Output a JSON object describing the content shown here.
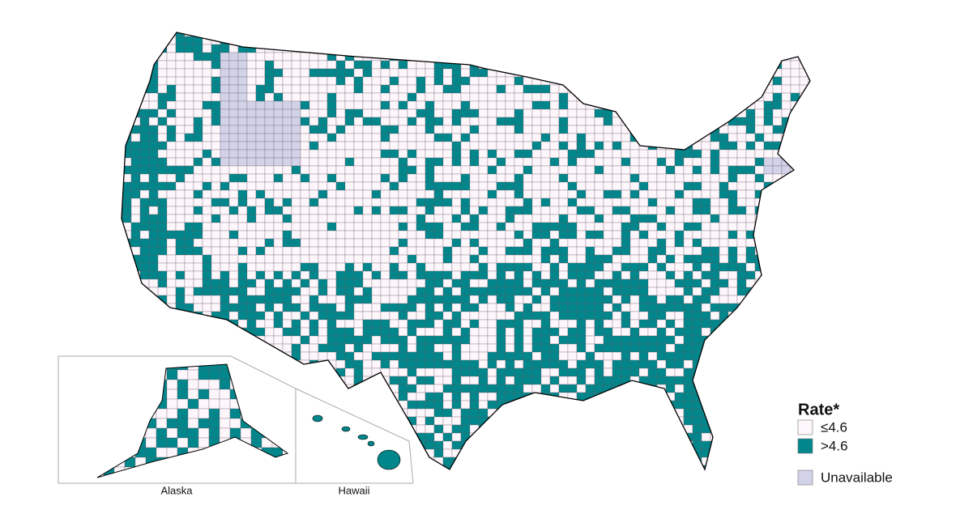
{
  "legend": {
    "title": "Rate*",
    "items": [
      {
        "label": "≤4.6",
        "color": "#fdf6fb"
      },
      {
        "label": ">4.6",
        "color": "#00868b"
      },
      {
        "label": "Unavailable",
        "color": "#d2d2e8"
      }
    ]
  },
  "insets": {
    "alaska": "Alaska",
    "hawaii": "Hawaii"
  }
}
